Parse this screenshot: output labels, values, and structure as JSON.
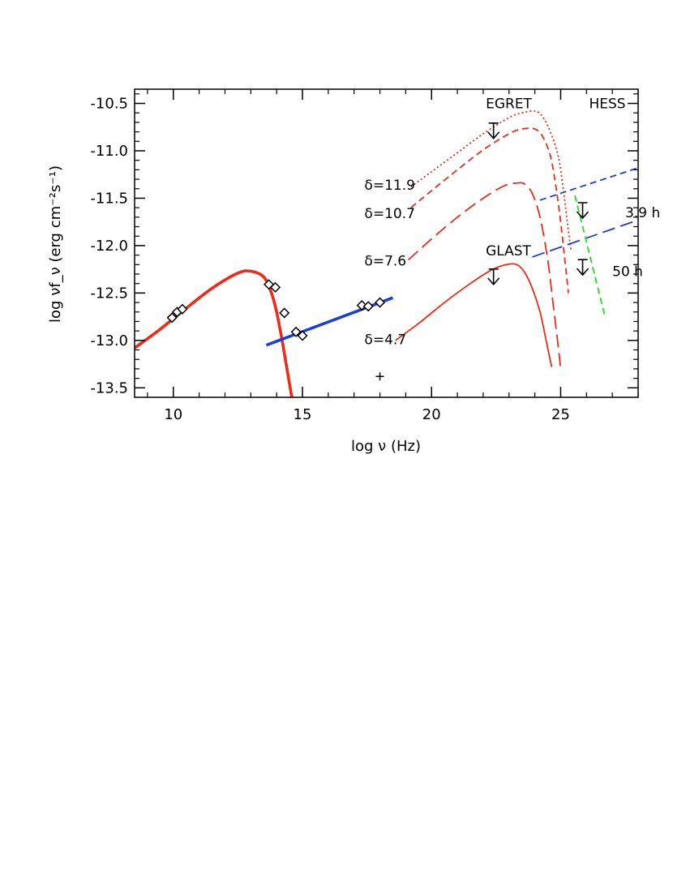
{
  "chart_data": {
    "type": "line",
    "title": "",
    "xlabel": "log ν (Hz)",
    "ylabel": "log νf_ν (erg cm⁻²s⁻¹)",
    "xlim": [
      8.5,
      28
    ],
    "ylim": [
      -13.6,
      -10.35
    ],
    "xticks": [
      10,
      15,
      20,
      25
    ],
    "yticks": [
      -10.5,
      -11.0,
      -11.5,
      -12.0,
      -12.5,
      -13.0,
      -13.5
    ],
    "xtick_labels": [
      "10",
      "15",
      "20",
      "25"
    ],
    "ytick_labels": [
      "-10.5",
      "-11.0",
      "-11.5",
      "-12.0",
      "-12.5",
      "-13.0",
      "-13.5"
    ],
    "grid": false,
    "series": [
      {
        "kind": "synchrotron",
        "color": "#ee2a1a",
        "style": "solid-thick",
        "x": [
          8.5,
          9.5,
          10.5,
          11.5,
          12.5,
          13.0,
          13.5,
          13.8,
          14.0,
          14.2,
          14.4,
          14.6
        ],
        "y": [
          -13.08,
          -12.88,
          -12.66,
          -12.45,
          -12.29,
          -12.27,
          -12.33,
          -12.5,
          -12.7,
          -12.98,
          -13.3,
          -13.62
        ]
      },
      {
        "kind": "xray-powerlaw",
        "color": "#1a3fd6",
        "style": "solid-thick",
        "x": [
          13.6,
          18.5
        ],
        "y": [
          -13.05,
          -12.55
        ]
      },
      {
        "name": "δ=11.9",
        "color": "#ee2a1a",
        "style": "dotted",
        "x": [
          19.2,
          20,
          21,
          22,
          23,
          23.5,
          24,
          24.3,
          24.6,
          24.9,
          25.1,
          25.3,
          25.4
        ],
        "y": [
          -11.38,
          -11.22,
          -11.02,
          -10.82,
          -10.65,
          -10.6,
          -10.58,
          -10.64,
          -10.8,
          -11.05,
          -11.4,
          -11.85,
          -12.05
        ]
      },
      {
        "name": "δ=10.7",
        "color": "#ee2a1a",
        "style": "dashed",
        "x": [
          19.2,
          20,
          21,
          22,
          23,
          23.5,
          24,
          24.3,
          24.6,
          24.8,
          25.0,
          25.2,
          25.3
        ],
        "y": [
          -11.6,
          -11.42,
          -11.2,
          -10.99,
          -10.82,
          -10.77,
          -10.77,
          -10.85,
          -11.05,
          -11.35,
          -11.75,
          -12.25,
          -12.5
        ]
      },
      {
        "name": "δ=7.6",
        "color": "#ee2a1a",
        "style": "long-dashed",
        "x": [
          19.1,
          20,
          21,
          22,
          22.8,
          23.3,
          23.6,
          23.9,
          24.2,
          24.5,
          24.7,
          24.9,
          25.0
        ],
        "y": [
          -12.15,
          -11.93,
          -11.7,
          -11.5,
          -11.37,
          -11.34,
          -11.35,
          -11.45,
          -11.7,
          -12.15,
          -12.6,
          -13.05,
          -13.3
        ]
      },
      {
        "name": "δ=4.7",
        "color": "#ee2a1a",
        "style": "solid",
        "x": [
          18.6,
          19.5,
          20.5,
          21.5,
          22.3,
          22.9,
          23.3,
          23.6,
          23.9,
          24.2,
          24.4,
          24.55,
          24.65
        ],
        "y": [
          -13.0,
          -12.82,
          -12.6,
          -12.4,
          -12.26,
          -12.2,
          -12.2,
          -12.28,
          -12.45,
          -12.7,
          -12.95,
          -13.15,
          -13.28
        ]
      },
      {
        "kind": "HESS 3.9 h sensitivity",
        "color": "#1a3fd6",
        "style": "dashed",
        "x": [
          24.2,
          28.0
        ],
        "y": [
          -11.52,
          -11.18
        ]
      },
      {
        "kind": "HESS 50 h sensitivity",
        "color": "#1a3fd6",
        "style": "long-dashed",
        "x": [
          23.9,
          28.0
        ],
        "y": [
          -12.12,
          -11.73
        ]
      },
      {
        "kind": "HESS spectrum",
        "color": "#22dd22",
        "style": "dashed",
        "x": [
          25.55,
          26.7
        ],
        "y": [
          -11.47,
          -12.73
        ]
      }
    ],
    "data_points": {
      "marker": "diamond",
      "x": [
        9.95,
        10.15,
        10.35,
        13.7,
        13.95,
        14.3,
        14.75,
        15.0,
        17.3,
        17.55,
        18.0
      ],
      "y": [
        -12.76,
        -12.7,
        -12.67,
        -12.41,
        -12.44,
        -12.71,
        -12.91,
        -12.95,
        -12.63,
        -12.64,
        -12.6
      ]
    },
    "cross_point": {
      "x": 18.0,
      "y": -13.38
    },
    "upper_limits": [
      {
        "x": 22.4,
        "y": -10.81
      },
      {
        "x": 22.4,
        "y": -12.35
      },
      {
        "x": 25.85,
        "y": -11.65
      },
      {
        "x": 25.85,
        "y": -12.25
      }
    ],
    "annotations": [
      {
        "text": "EGRET",
        "x": 22.1,
        "y": -10.5
      },
      {
        "text": "HESS",
        "x": 26.1,
        "y": -10.5
      },
      {
        "text": "GLAST",
        "x": 22.1,
        "y": -12.05
      },
      {
        "text": "3.9 h",
        "x": 27.5,
        "y": -11.65
      },
      {
        "text": "50 h",
        "x": 27.0,
        "y": -12.27
      },
      {
        "text": "δ=11.9",
        "x": 17.4,
        "y": -11.36
      },
      {
        "text": "δ=10.7",
        "x": 17.4,
        "y": -11.66
      },
      {
        "text": "δ=7.6",
        "x": 17.4,
        "y": -12.16
      },
      {
        "text": "δ=4.7",
        "x": 17.4,
        "y": -12.99
      }
    ]
  }
}
